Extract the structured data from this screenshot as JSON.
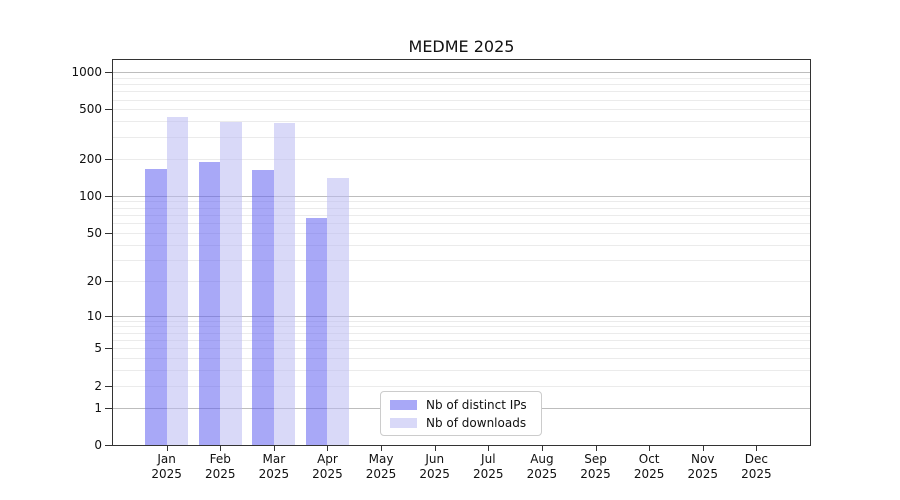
{
  "chart_data": {
    "type": "bar",
    "title": "MEDME 2025",
    "categories": [
      {
        "month": "Jan",
        "year": "2025"
      },
      {
        "month": "Feb",
        "year": "2025"
      },
      {
        "month": "Mar",
        "year": "2025"
      },
      {
        "month": "Apr",
        "year": "2025"
      },
      {
        "month": "May",
        "year": "2025"
      },
      {
        "month": "Jun",
        "year": "2025"
      },
      {
        "month": "Jul",
        "year": "2025"
      },
      {
        "month": "Aug",
        "year": "2025"
      },
      {
        "month": "Sep",
        "year": "2025"
      },
      {
        "month": "Oct",
        "year": "2025"
      },
      {
        "month": "Nov",
        "year": "2025"
      },
      {
        "month": "Dec",
        "year": "2025"
      }
    ],
    "series": [
      {
        "name": "Nb of distinct IPs",
        "color": "#6060f0",
        "values": [
          165,
          187,
          162,
          66,
          null,
          null,
          null,
          null,
          null,
          null,
          null,
          null
        ]
      },
      {
        "name": "Nb of downloads",
        "color": "#babaf2",
        "values": [
          437,
          396,
          391,
          140,
          null,
          null,
          null,
          null,
          null,
          null,
          null,
          null
        ]
      }
    ],
    "bar_alpha": 0.55,
    "yticks": [
      0,
      1,
      2,
      5,
      10,
      20,
      50,
      100,
      200,
      500,
      1000
    ],
    "ytick_labels": [
      "0",
      "1",
      "2",
      "5",
      "10",
      "20",
      "50",
      "100",
      "200",
      "500",
      "1000"
    ],
    "scale": "log1p",
    "ylim": [
      0,
      1250
    ],
    "xlabel": "",
    "ylabel": "",
    "grid": "horizontal",
    "legend_position": "lower center"
  }
}
